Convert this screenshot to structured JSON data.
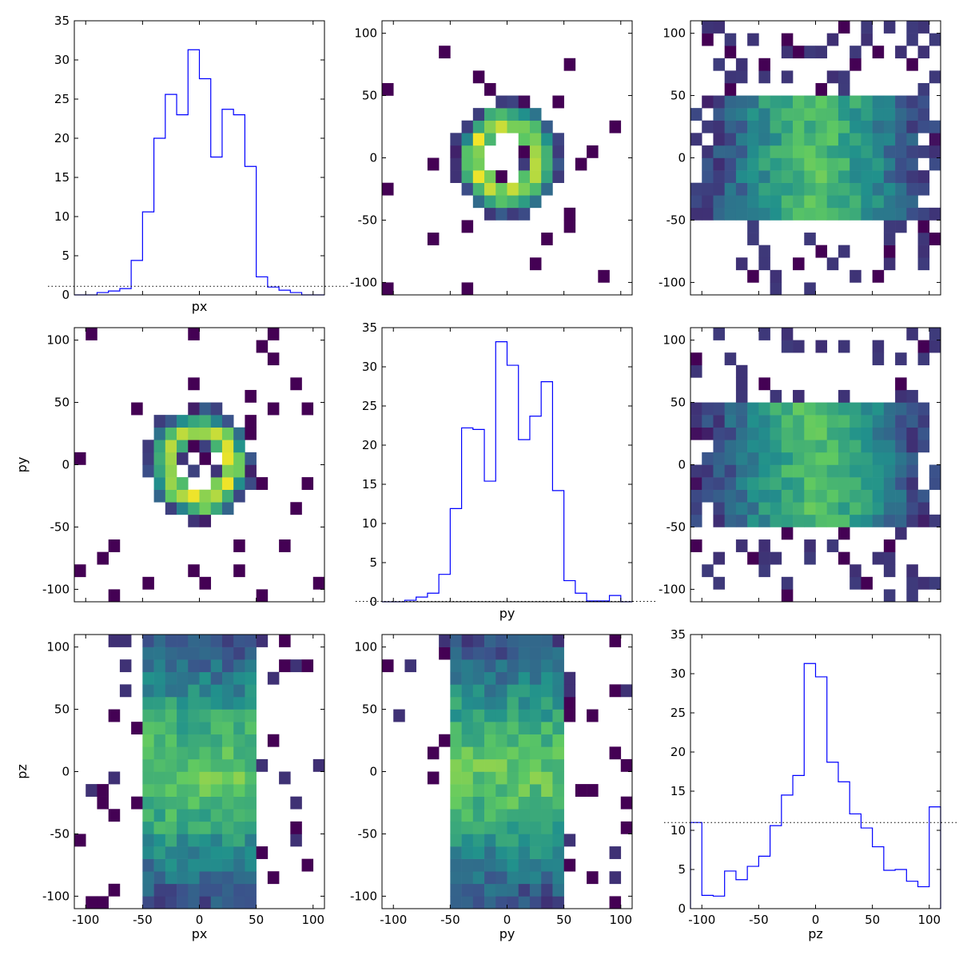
{
  "chart_data": [
    {
      "panel": "row1-col1",
      "type": "histogram",
      "xlabel": "px",
      "ylabel": "",
      "xlim": [
        -110,
        110
      ],
      "ylim": [
        0,
        35
      ],
      "xticks": [],
      "yticks": [
        0,
        5,
        10,
        15,
        20,
        25,
        30,
        35
      ],
      "bin_edges": [
        -110,
        -100,
        -90,
        -80,
        -70,
        -60,
        -50,
        -40,
        -30,
        -20,
        -10,
        0,
        10,
        20,
        30,
        40,
        50,
        60,
        70,
        80,
        90,
        100,
        110
      ],
      "values": [
        0,
        0,
        0.3,
        0.5,
        0.8,
        4.4,
        10.6,
        20,
        25.6,
        23,
        31.3,
        27.6,
        17.6,
        23.7,
        23,
        16.4,
        2.3,
        1,
        0.6,
        0.3,
        0,
        0
      ],
      "reference_level": 1.1
    },
    {
      "panel": "row1-col2",
      "type": "heatmap",
      "xlabel": "",
      "ylabel": "",
      "xlim": [
        -110,
        110
      ],
      "ylim": [
        -110,
        110
      ],
      "xticks": [],
      "yticks": [
        -100,
        -50,
        0,
        50,
        100
      ],
      "pattern": "ring"
    },
    {
      "panel": "row1-col3",
      "type": "heatmap",
      "xlabel": "",
      "ylabel": "",
      "xlim": [
        -110,
        110
      ],
      "ylim": [
        -110,
        110
      ],
      "xticks": [],
      "yticks": [
        -100,
        -50,
        0,
        50,
        100
      ],
      "pattern": "slab"
    },
    {
      "panel": "row2-col1",
      "type": "heatmap",
      "xlabel": "",
      "ylabel": "py",
      "xlim": [
        -110,
        110
      ],
      "ylim": [
        -110,
        110
      ],
      "xticks": [],
      "yticks": [
        -100,
        -50,
        0,
        50,
        100
      ],
      "pattern": "ring"
    },
    {
      "panel": "row2-col2",
      "type": "histogram",
      "xlabel": "py",
      "ylabel": "",
      "xlim": [
        -110,
        110
      ],
      "ylim": [
        0,
        35
      ],
      "xticks": [],
      "yticks": [
        0,
        5,
        10,
        15,
        20,
        25,
        30,
        35
      ],
      "bin_edges": [
        -110,
        -100,
        -90,
        -80,
        -70,
        -60,
        -50,
        -40,
        -30,
        -20,
        -10,
        0,
        10,
        20,
        30,
        40,
        50,
        60,
        70,
        80,
        90,
        100,
        110
      ],
      "values": [
        0,
        0,
        0.2,
        0.6,
        1.1,
        3.5,
        11.9,
        22.2,
        22,
        15.4,
        33.2,
        30.2,
        20.7,
        23.7,
        28.1,
        14.2,
        2.7,
        1.1,
        0.1,
        0.1,
        0.8,
        0
      ],
      "reference_level": 0.05
    },
    {
      "panel": "row2-col3",
      "type": "heatmap",
      "xlabel": "",
      "ylabel": "",
      "xlim": [
        -110,
        110
      ],
      "ylim": [
        -110,
        110
      ],
      "xticks": [],
      "yticks": [
        -100,
        -50,
        0,
        50,
        100
      ],
      "pattern": "slab"
    },
    {
      "panel": "row3-col1",
      "type": "heatmap",
      "xlabel": "px",
      "ylabel": "pz",
      "xlim": [
        -110,
        110
      ],
      "ylim": [
        -110,
        110
      ],
      "xticks": [
        -100,
        -50,
        0,
        50,
        100
      ],
      "yticks": [
        -100,
        -50,
        0,
        50,
        100
      ],
      "pattern": "column"
    },
    {
      "panel": "row3-col2",
      "type": "heatmap",
      "xlabel": "py",
      "ylabel": "",
      "xlim": [
        -110,
        110
      ],
      "ylim": [
        -110,
        110
      ],
      "xticks": [
        -100,
        -50,
        0,
        50,
        100
      ],
      "yticks": [
        -100,
        -50,
        0,
        50,
        100
      ],
      "pattern": "column"
    },
    {
      "panel": "row3-col3",
      "type": "histogram",
      "xlabel": "pz",
      "ylabel": "",
      "xlim": [
        -110,
        110
      ],
      "ylim": [
        0,
        35
      ],
      "xticks": [
        -100,
        -50,
        0,
        50,
        100
      ],
      "yticks": [
        0,
        5,
        10,
        15,
        20,
        25,
        30,
        35
      ],
      "bin_edges": [
        -110,
        -100,
        -90,
        -80,
        -70,
        -60,
        -50,
        -40,
        -30,
        -20,
        -10,
        0,
        10,
        20,
        30,
        40,
        50,
        60,
        70,
        80,
        90,
        100,
        110
      ],
      "values": [
        11,
        1.7,
        1.6,
        4.8,
        3.7,
        5.4,
        6.7,
        10.6,
        14.5,
        17,
        31.3,
        29.6,
        18.7,
        16.2,
        12.1,
        10.3,
        7.9,
        4.9,
        5,
        3.5,
        2.8,
        13
      ],
      "reference_level": 11
    }
  ],
  "colors": {
    "hist_line": "#0000ff",
    "reference_line": "#000000",
    "colormap": [
      "#440154",
      "#3b528b",
      "#21918c",
      "#5ec962",
      "#fde725"
    ]
  }
}
